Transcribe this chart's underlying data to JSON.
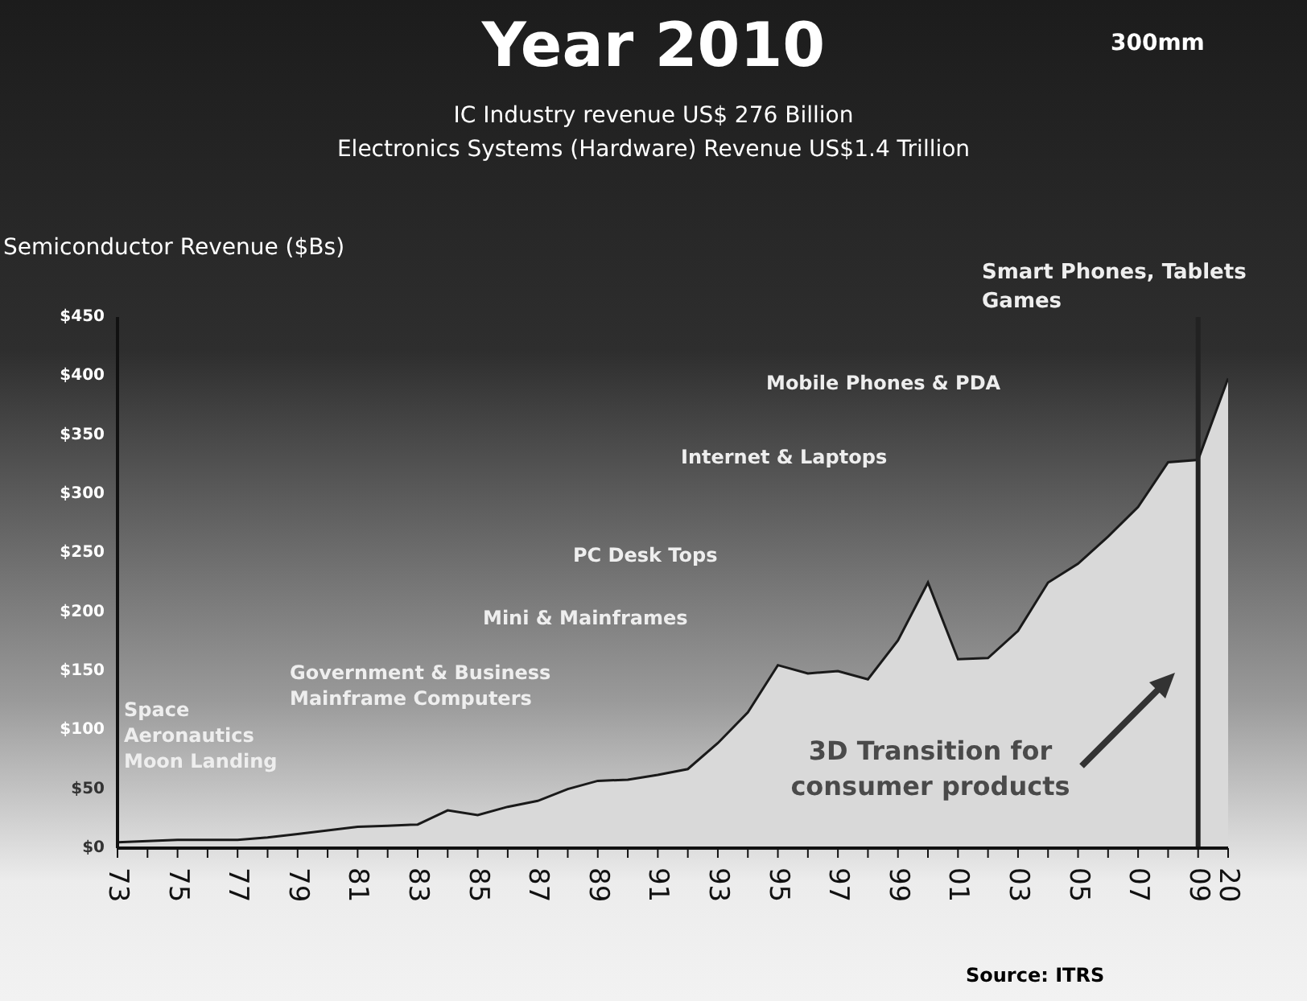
{
  "chart_data": {
    "type": "area",
    "title": "Year 2010",
    "subtitle": "IC Industry revenue US$ 276 Billion\nElectronics Systems (Hardware) Revenue US$1.4 Trillion",
    "ylabel": "Semiconductor Revenue ($Bs)",
    "categories": [
      "73",
      null,
      "75",
      null,
      "77",
      null,
      "79",
      null,
      "81",
      null,
      "83",
      null,
      "85",
      null,
      "87",
      null,
      "89",
      null,
      "91",
      null,
      "93",
      null,
      "95",
      null,
      "97",
      null,
      "99",
      null,
      "01",
      null,
      "03",
      null,
      "05",
      null,
      "07",
      null,
      "09",
      "20"
    ],
    "series": [
      {
        "color": "#d9d9d9",
        "values": [
          5,
          6,
          7,
          7,
          7,
          9,
          12,
          15,
          18,
          19,
          20,
          32,
          28,
          35,
          40,
          50,
          57,
          58,
          62,
          67,
          89,
          115,
          155,
          148,
          150,
          143,
          176,
          225,
          160,
          161,
          184,
          225,
          241,
          264,
          289,
          327,
          329,
          398
        ]
      }
    ],
    "ylim": [
      0,
      450
    ],
    "yticks": [
      {
        "value": 0,
        "label": "$0"
      },
      {
        "value": 50,
        "label": "$50"
      },
      {
        "value": 100,
        "label": "$100"
      },
      {
        "value": 150,
        "label": "$150"
      },
      {
        "value": 200,
        "label": "$200"
      },
      {
        "value": 250,
        "label": "$250"
      },
      {
        "value": 300,
        "label": "$300"
      },
      {
        "value": 350,
        "label": "$350"
      },
      {
        "value": 400,
        "label": "$400"
      },
      {
        "value": 450,
        "label": "$450"
      }
    ],
    "ref_lines": [
      {
        "axis": "x",
        "value": "09",
        "color": "#222222"
      }
    ],
    "grid": false,
    "legend": false,
    "annotations": [
      "300mm",
      "Space\nAeronautics\nMoon Landing",
      "Government & Business\nMainframe Computers",
      "Mini & Mainframes",
      "PC Desk Tops",
      "Internet & Laptops",
      "Mobile Phones & PDA",
      "Smart Phones, Tablets\nGames",
      "3D Transition for\nconsumer products",
      "Source: ITRS"
    ]
  }
}
